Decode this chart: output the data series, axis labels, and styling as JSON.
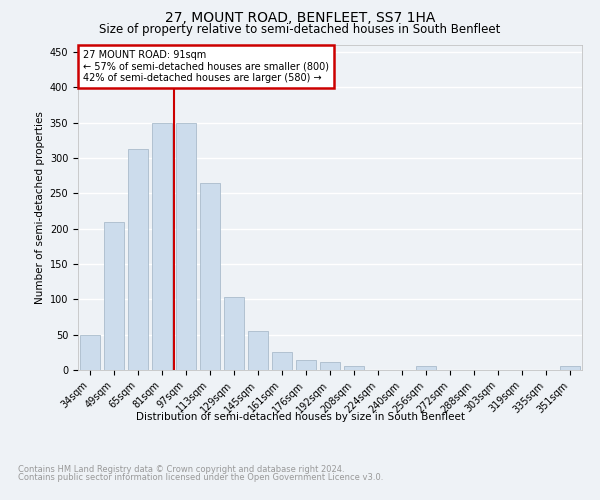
{
  "title": "27, MOUNT ROAD, BENFLEET, SS7 1HA",
  "subtitle": "Size of property relative to semi-detached houses in South Benfleet",
  "xlabel": "Distribution of semi-detached houses by size in South Benfleet",
  "ylabel": "Number of semi-detached properties",
  "footer_line1": "Contains HM Land Registry data © Crown copyright and database right 2024.",
  "footer_line2": "Contains public sector information licensed under the Open Government Licence v3.0.",
  "categories": [
    "34sqm",
    "49sqm",
    "65sqm",
    "81sqm",
    "97sqm",
    "113sqm",
    "129sqm",
    "145sqm",
    "161sqm",
    "176sqm",
    "192sqm",
    "208sqm",
    "224sqm",
    "240sqm",
    "256sqm",
    "272sqm",
    "288sqm",
    "303sqm",
    "319sqm",
    "335sqm",
    "351sqm"
  ],
  "values": [
    50,
    210,
    313,
    350,
    350,
    265,
    104,
    55,
    26,
    14,
    11,
    5,
    0,
    0,
    5,
    0,
    0,
    0,
    0,
    0,
    5
  ],
  "bar_color": "#ccdcec",
  "bar_edge_color": "#aabccc",
  "property_line_x": 3.5,
  "property_size": "91sqm",
  "pct_smaller": 57,
  "count_smaller": 800,
  "pct_larger": 42,
  "count_larger": 580,
  "annotation_box_color": "#cc0000",
  "ylim": [
    0,
    460
  ],
  "yticks": [
    0,
    50,
    100,
    150,
    200,
    250,
    300,
    350,
    400,
    450
  ],
  "background_color": "#eef2f6",
  "grid_color": "#ffffff",
  "title_fontsize": 10,
  "subtitle_fontsize": 8.5,
  "axis_label_fontsize": 7.5,
  "tick_fontsize": 7,
  "footer_fontsize": 6,
  "annotation_fontsize": 7
}
